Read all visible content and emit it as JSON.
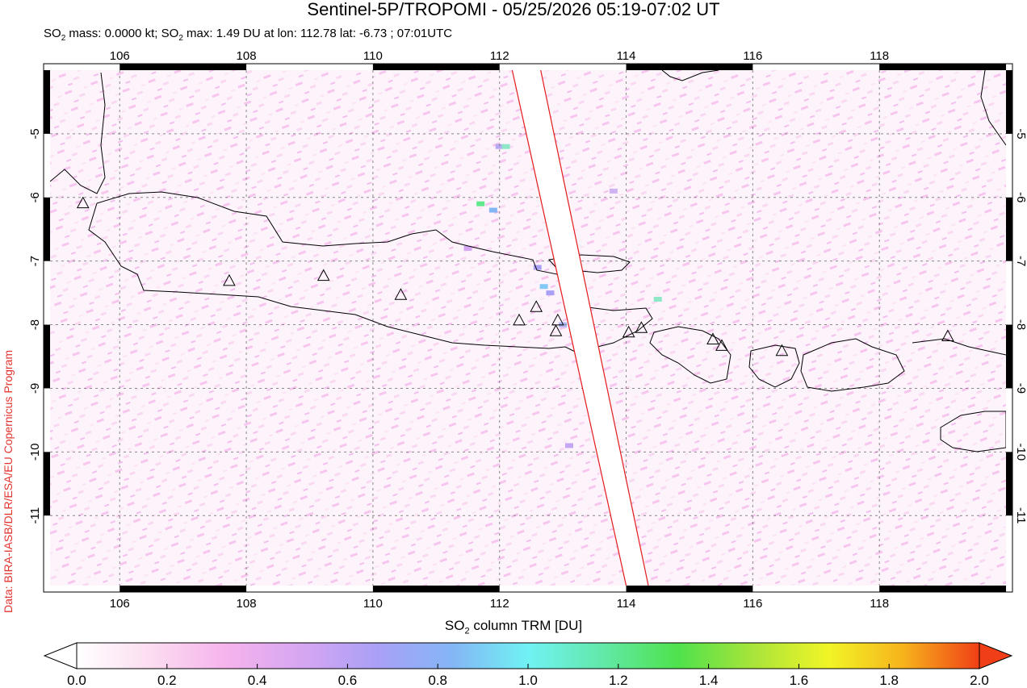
{
  "header": {
    "title": "Sentinel-5P/TROPOMI - 05/25/2026 05:19-07:02 UT",
    "subtitle_parts": [
      "SO",
      "2",
      " mass: 0.0000 kt; SO",
      "2",
      " max: 1.49 DU at lon: 112.78 lat: -6.73 ; 07:01UTC"
    ],
    "credit": "Data: BIRA-IASB/DLR/ESA/EU Copernicus Program"
  },
  "map": {
    "lon_range": [
      104.9,
      120.0
    ],
    "lat_range": [
      -12.1,
      -4.0
    ],
    "lon_ticks": [
      "106",
      "108",
      "110",
      "112",
      "114",
      "116",
      "118"
    ],
    "lon_tick_values": [
      106,
      108,
      110,
      112,
      114,
      116,
      118
    ],
    "lat_ticks": [
      "-5",
      "-6",
      "-7",
      "-8",
      "-9",
      "-10",
      "-11"
    ],
    "lat_tick_values": [
      -5,
      -6,
      -7,
      -8,
      -9,
      -10,
      -11
    ],
    "grid": true,
    "volcano_icon": "triangle-icon",
    "volcanoes": [
      {
        "lon": 105.42,
        "lat": -6.1
      },
      {
        "lon": 107.73,
        "lat": -7.32
      },
      {
        "lon": 109.22,
        "lat": -7.24
      },
      {
        "lon": 110.44,
        "lat": -7.54
      },
      {
        "lon": 112.31,
        "lat": -7.94
      },
      {
        "lon": 112.58,
        "lat": -7.73
      },
      {
        "lon": 112.92,
        "lat": -7.94
      },
      {
        "lon": 112.89,
        "lat": -8.11
      },
      {
        "lon": 114.04,
        "lat": -8.13
      },
      {
        "lon": 114.24,
        "lat": -8.06
      },
      {
        "lon": 115.37,
        "lat": -8.24
      },
      {
        "lon": 115.51,
        "lat": -8.34
      },
      {
        "lon": 116.46,
        "lat": -8.42
      },
      {
        "lon": 119.08,
        "lat": -8.19
      }
    ],
    "swath_edges": [
      [
        {
          "lon": 112.2,
          "lat": -4.0
        },
        {
          "lon": 114.0,
          "lat": -12.1
        }
      ],
      [
        {
          "lon": 112.65,
          "lat": -4.0
        },
        {
          "lon": 114.35,
          "lat": -12.1
        }
      ]
    ]
  },
  "colorbar": {
    "title_parts": [
      "SO",
      "2",
      " column TRM [DU]"
    ],
    "tick_labels": [
      "0.0",
      "0.2",
      "0.4",
      "0.6",
      "0.8",
      "1.0",
      "1.2",
      "1.4",
      "1.6",
      "1.8",
      "2.0"
    ],
    "range": [
      0.0,
      2.0
    ],
    "colors": [
      "#ffffff",
      "#fbdcf0",
      "#f5b3ec",
      "#d6a6f2",
      "#a9a0f6",
      "#84b6f5",
      "#70f2f4",
      "#62e8a8",
      "#4fe24c",
      "#a9e43a",
      "#f1f526",
      "#f7b21c",
      "#f03f16"
    ]
  }
}
